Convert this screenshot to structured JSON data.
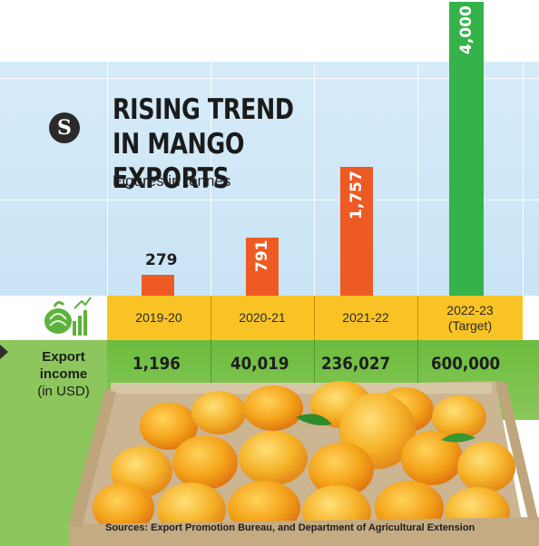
{
  "chart_data": {
    "type": "bar",
    "title": "RISING TREND IN MANGO EXPORTS",
    "subtitle": "Figures in tonnes",
    "categories": [
      "2019-20",
      "2020-21",
      "2021-22",
      "2022-23\n(Target)"
    ],
    "values": [
      279,
      791,
      1757,
      4000
    ],
    "value_labels": [
      "279",
      "791",
      "1,757",
      "4,000"
    ],
    "bar_colors": [
      "#ee5a24",
      "#ee5a24",
      "#ee5a24",
      "#35b34a"
    ],
    "export_income": {
      "label": [
        "Export",
        "income",
        "(in USD)"
      ],
      "values": [
        "1,196",
        "40,019",
        "236,027",
        "600,000"
      ]
    },
    "source": "Sources: Export Promotion Bureau, and Department of Agricultural Extension",
    "logo_letter": "S"
  }
}
